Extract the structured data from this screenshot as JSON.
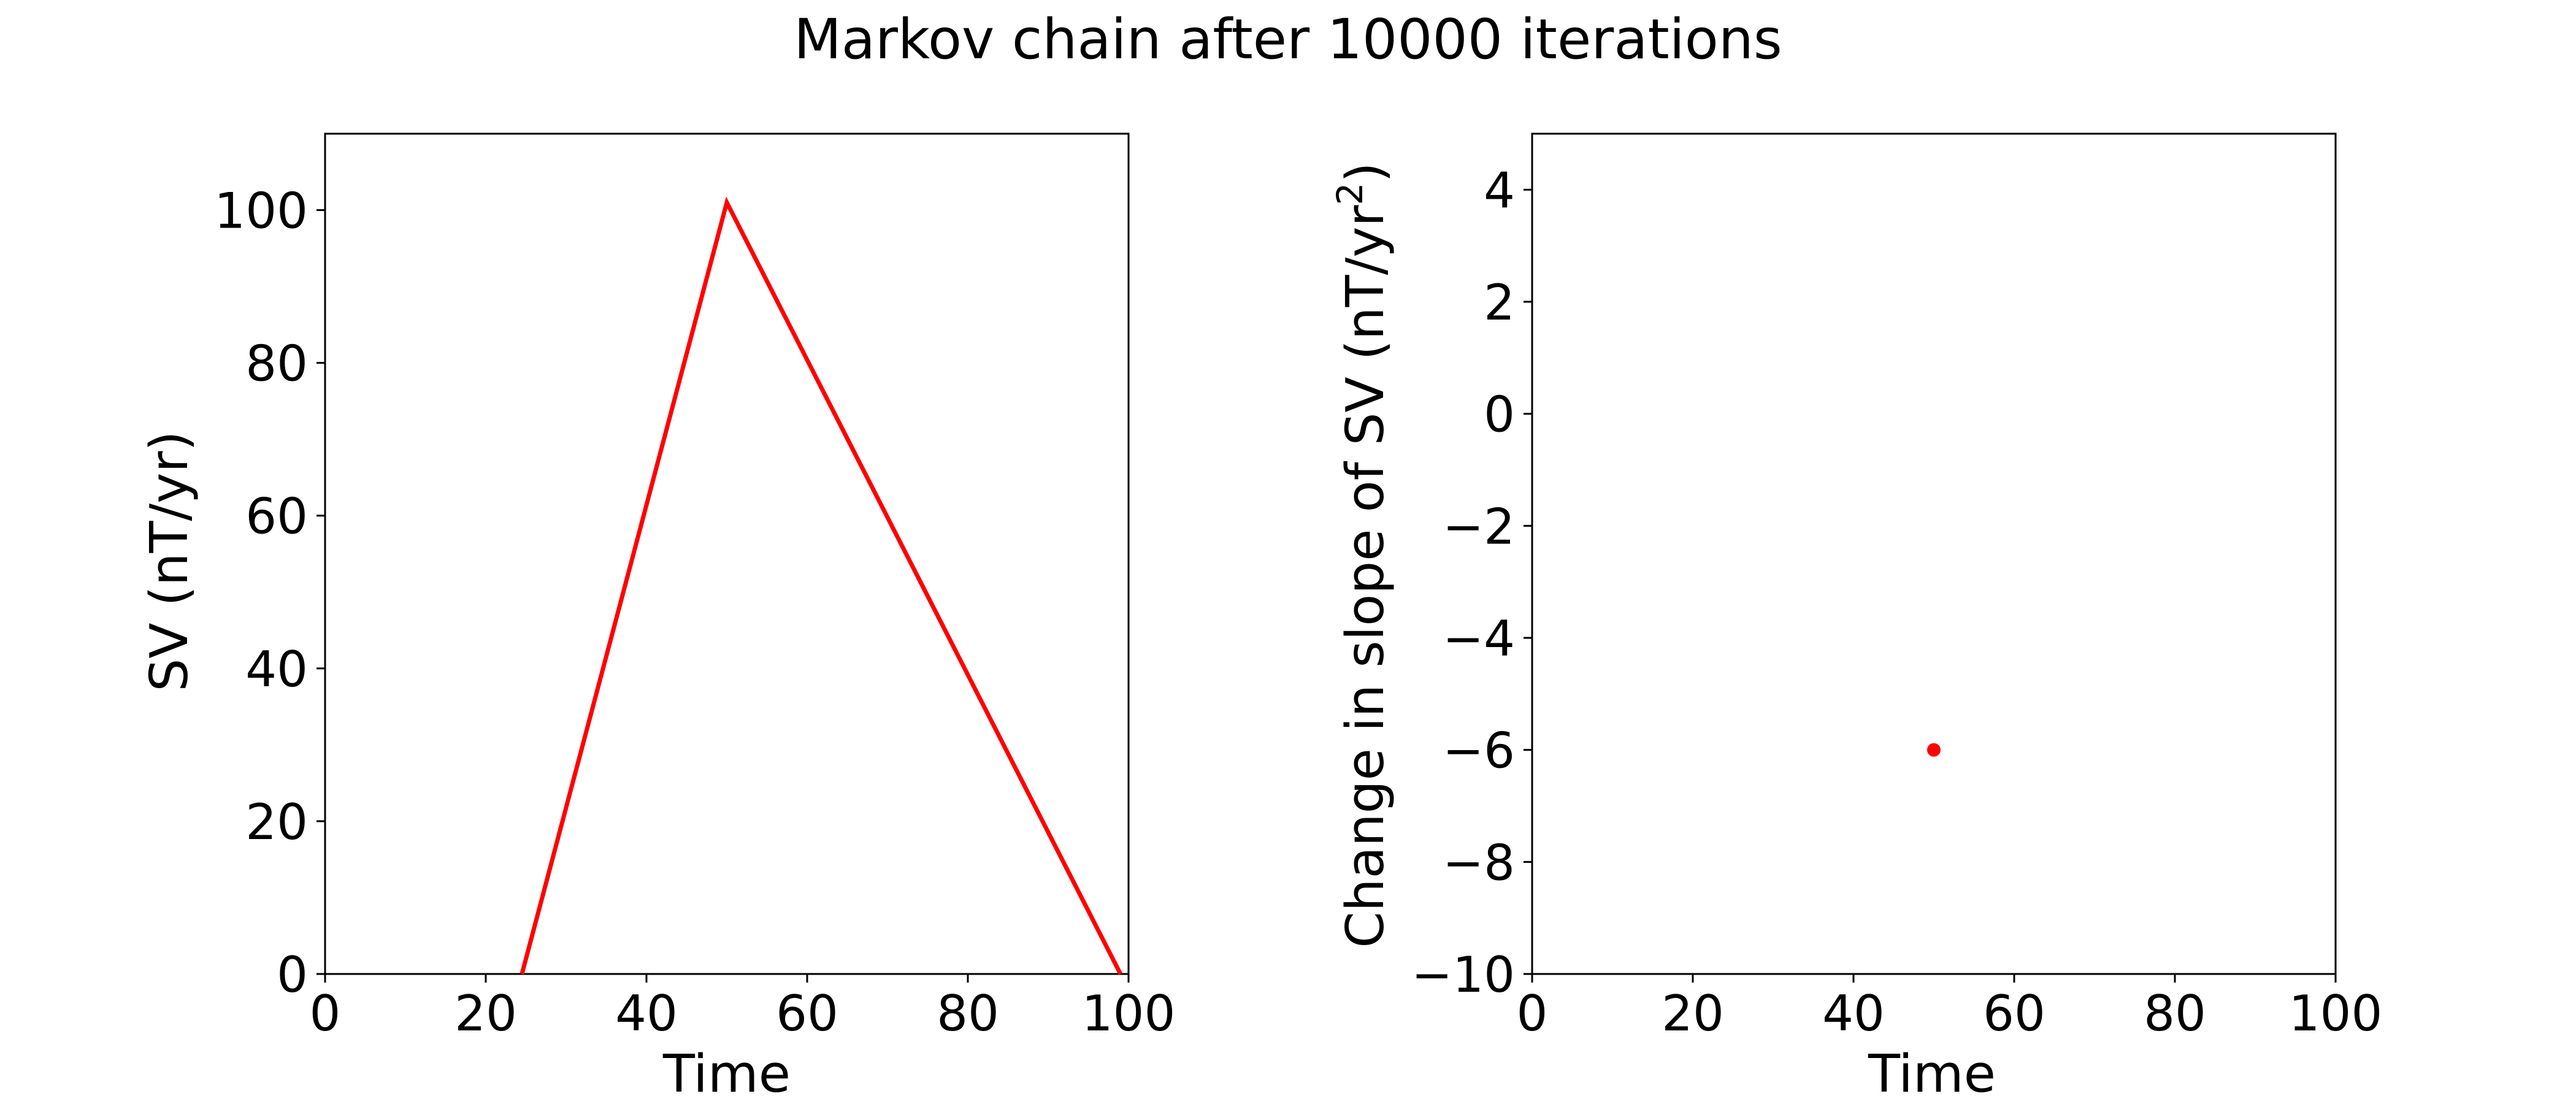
{
  "figure": {
    "suptitle": "Markov chain after 10000 iterations"
  },
  "chart_data": [
    {
      "type": "line",
      "xlabel": "Time",
      "ylabel": "SV (nT/yr)",
      "xlim": [
        0,
        100
      ],
      "ylim": [
        0,
        110
      ],
      "xticks": [
        0,
        20,
        40,
        60,
        80,
        100
      ],
      "yticks": [
        0,
        20,
        40,
        60,
        80,
        100
      ],
      "xtick_labels": [
        "0",
        "20",
        "40",
        "60",
        "80",
        "100"
      ],
      "ytick_labels": [
        "0",
        "20",
        "40",
        "60",
        "80",
        "100"
      ],
      "grid": false,
      "series": [
        {
          "color": "#ff0000",
          "x": [
            24.5,
            50,
            99
          ],
          "y": [
            0,
            101,
            0
          ]
        }
      ]
    },
    {
      "type": "scatter",
      "xlabel": "Time",
      "ylabel": "Change in slope of SV (nT/yr",
      "ylabel_superscript": "2",
      "ylabel_suffix": ")",
      "xlim": [
        0,
        100
      ],
      "ylim": [
        -10,
        5
      ],
      "xticks": [
        0,
        20,
        40,
        60,
        80,
        100
      ],
      "yticks": [
        -10,
        -8,
        -6,
        -4,
        -2,
        0,
        2,
        4
      ],
      "xtick_labels": [
        "0",
        "20",
        "40",
        "60",
        "80",
        "100"
      ],
      "ytick_labels": [
        "−10",
        "−8",
        "−6",
        "−4",
        "−2",
        "0",
        "2",
        "4"
      ],
      "grid": false,
      "series": [
        {
          "color": "#ff0000",
          "x": [
            50
          ],
          "y": [
            -6
          ]
        }
      ]
    }
  ]
}
